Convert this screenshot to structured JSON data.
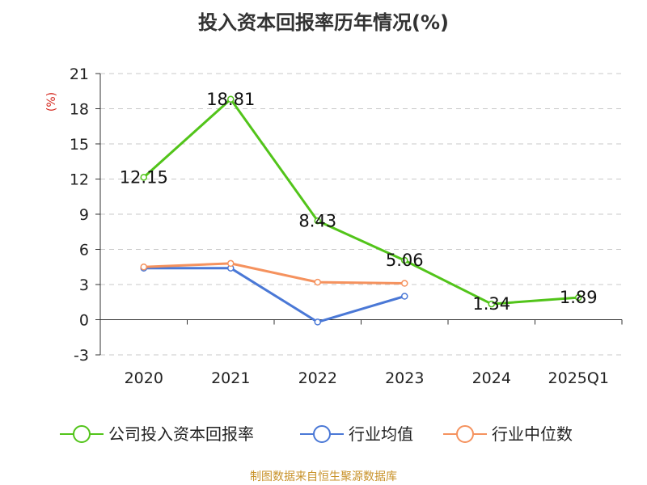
{
  "title": "投入资本回报率历年情况(%)",
  "source": "制图数据来自恒生聚源数据库",
  "chart_data": {
    "type": "line",
    "title": "投入资本回报率历年情况(%)",
    "ylabel": "(%)",
    "categories": [
      "2020",
      "2021",
      "2022",
      "2023",
      "2024",
      "2025Q1"
    ],
    "ylim": [
      -3,
      21
    ],
    "yticks": [
      -3,
      0,
      3,
      6,
      9,
      12,
      15,
      18,
      21
    ],
    "grid": true,
    "legend_position": "bottom",
    "series": [
      {
        "name": "公司投入资本回报率",
        "color": "#52c41a",
        "values": [
          12.15,
          18.81,
          8.43,
          5.06,
          1.34,
          1.89
        ],
        "labels": [
          "12.15",
          "18.81",
          "8.43",
          "5.06",
          "1.34",
          "1.89"
        ]
      },
      {
        "name": "行业均值",
        "color": "#4a78d6",
        "values": [
          4.4,
          4.4,
          -0.2,
          2.0,
          null,
          null
        ]
      },
      {
        "name": "行业中位数",
        "color": "#f5925e",
        "values": [
          4.5,
          4.8,
          3.2,
          3.1,
          null,
          null
        ]
      }
    ]
  }
}
